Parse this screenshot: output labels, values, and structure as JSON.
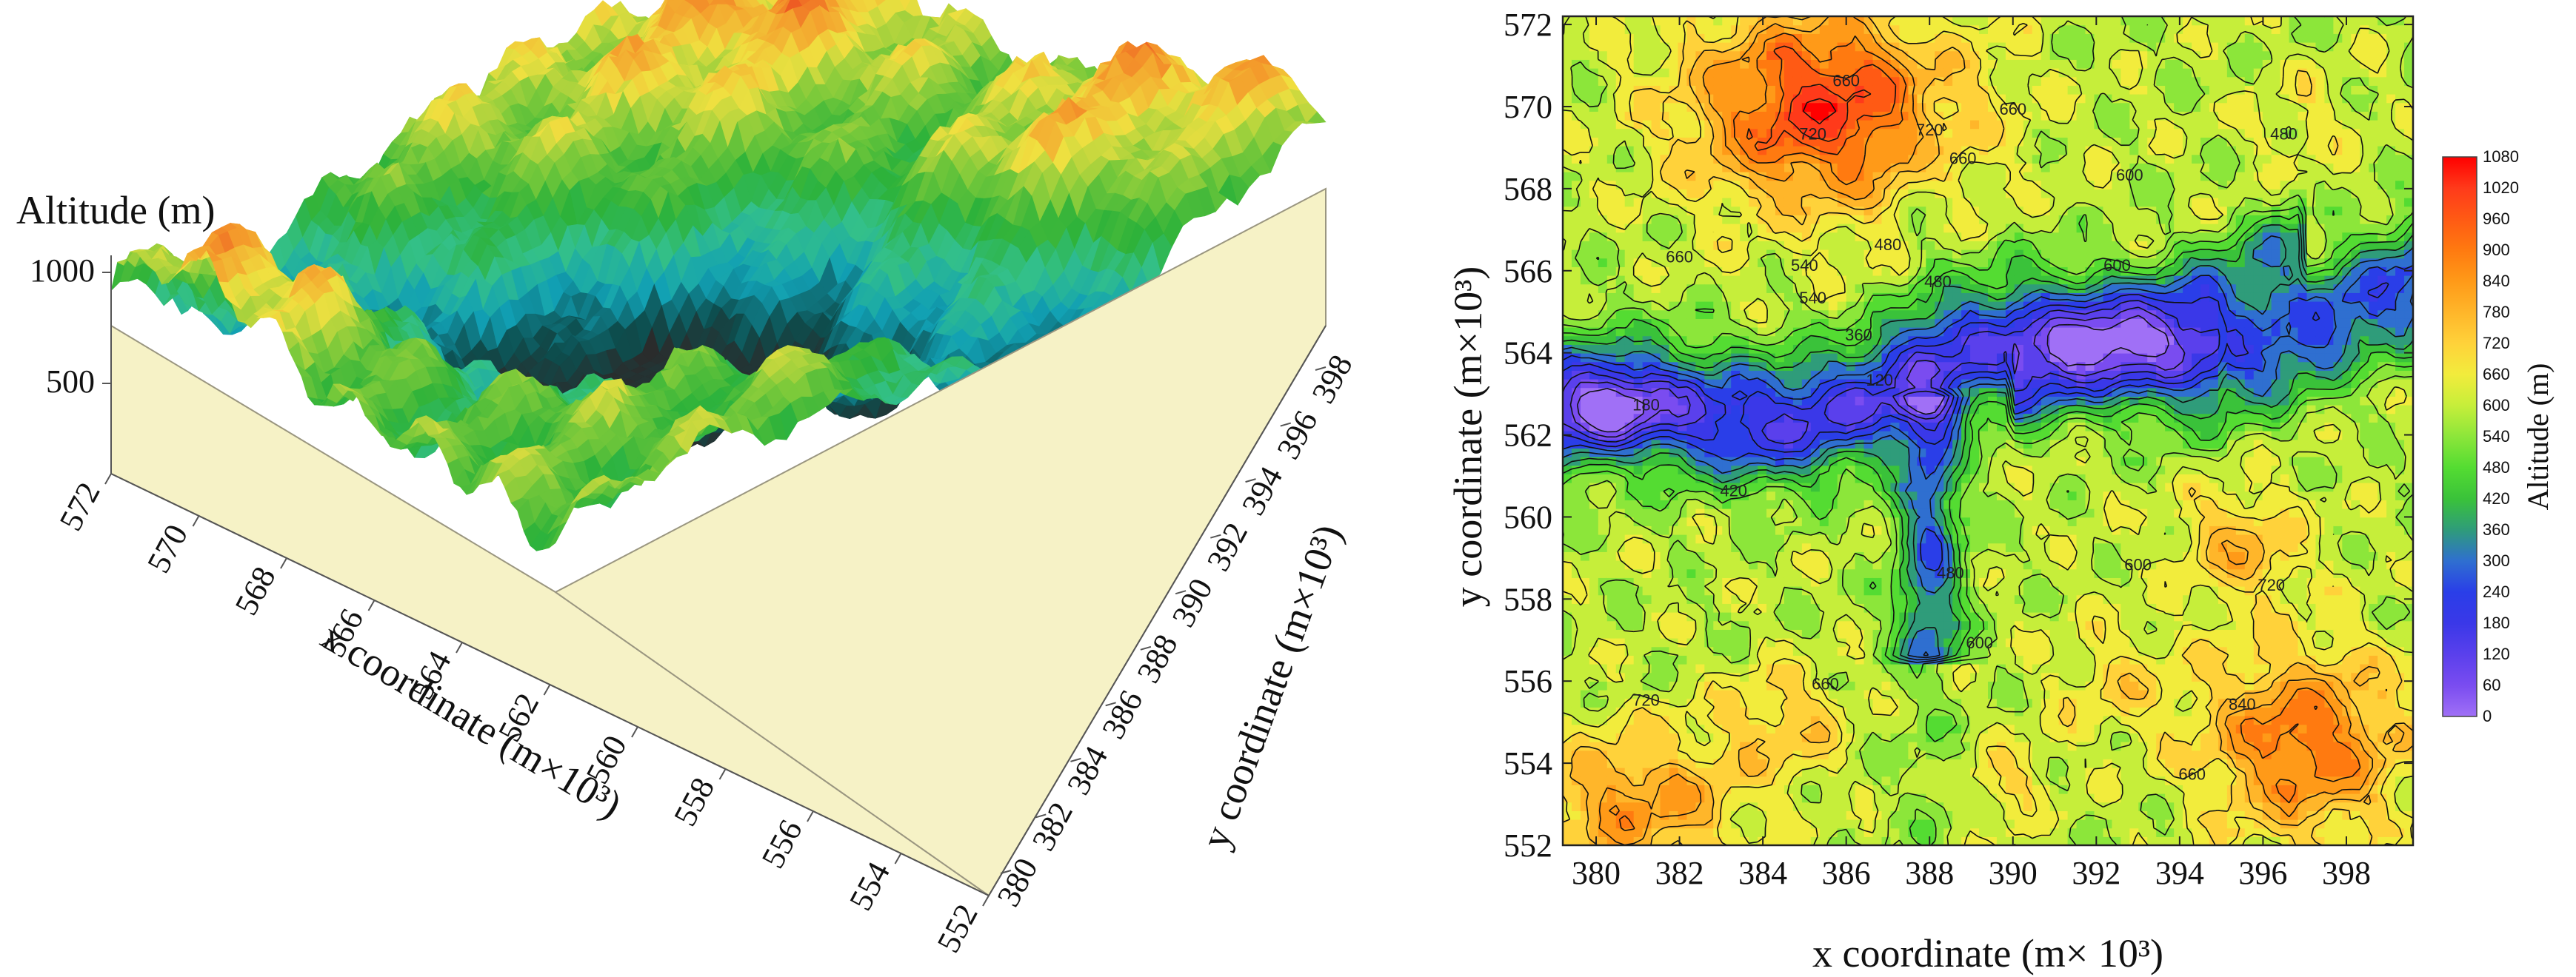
{
  "chart_data": [
    {
      "type": "surface3d",
      "zlabel": "Altitude (m)",
      "xlabel": "x coordinate (m×10³)",
      "ylabel": "y coordinate (m×10³)",
      "z_ticks": [
        "1000",
        "500"
      ],
      "x_ticks": [
        "572",
        "570",
        "568",
        "566",
        "564",
        "562",
        "560",
        "558",
        "556",
        "554",
        "552"
      ],
      "y_ticks": [
        "398",
        "396",
        "394",
        "392",
        "390",
        "388",
        "386",
        "384",
        "382",
        "380"
      ],
      "xlim": [
        552,
        572
      ],
      "ylim": [
        380,
        398
      ],
      "colors": {
        "base": "#f6f2c6",
        "ramp": [
          "#2b2b2b",
          "#0d4d4d",
          "#11a0b4",
          "#33c08a",
          "#2db23a",
          "#79c93a",
          "#f0e040",
          "#f49a2b",
          "#e8261c",
          "#ffffff"
        ]
      }
    },
    {
      "type": "contour",
      "xlabel": "x coordinate (m× 10³)",
      "ylabel": "y coordinate (m×10³)",
      "colorbar_label": "Altitude (m)",
      "x_ticks": [
        "380",
        "382",
        "384",
        "386",
        "388",
        "390",
        "392",
        "394",
        "396",
        "398"
      ],
      "y_ticks": [
        "572",
        "570",
        "568",
        "566",
        "564",
        "562",
        "560",
        "558",
        "556",
        "554",
        "552"
      ],
      "xlim": [
        379.2,
        399.6
      ],
      "ylim": [
        552,
        572.2
      ],
      "levels": [
        "1080",
        "1020",
        "960",
        "900",
        "840",
        "780",
        "720",
        "660",
        "600",
        "540",
        "480",
        "420",
        "360",
        "300",
        "240",
        "180",
        "120",
        "60",
        "0"
      ],
      "level_colors": [
        "#ff0000",
        "#ff3a1a",
        "#ff5a14",
        "#ff7a10",
        "#ff9a18",
        "#ffb62a",
        "#ffd23a",
        "#f2ec3c",
        "#c6ee3a",
        "#8ce63a",
        "#54dc32",
        "#3ac23a",
        "#2f9c7a",
        "#2f6fd0",
        "#2a3ee8",
        "#3a38e8",
        "#5a40ec",
        "#7a4cf0",
        "#a070f6"
      ],
      "contour_labels": [
        "660",
        "720",
        "660",
        "480",
        "540",
        "660",
        "720",
        "660",
        "480",
        "540",
        "600",
        "480",
        "360",
        "120",
        "180",
        "420",
        "600",
        "480",
        "600",
        "720",
        "840",
        "660",
        "720",
        "660",
        "600"
      ]
    }
  ]
}
